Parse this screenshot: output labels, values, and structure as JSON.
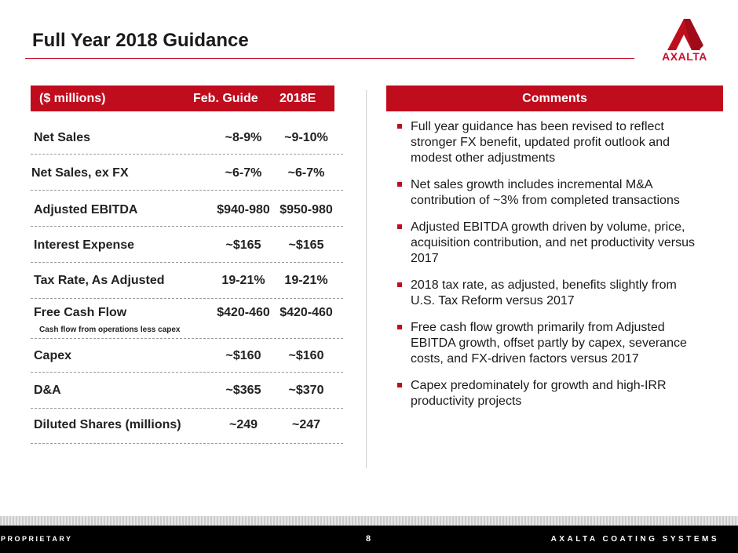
{
  "header": {
    "title": "Full Year 2018 Guidance",
    "logo_text": "AXALTA",
    "brand_color": "#c00d1e"
  },
  "table": {
    "header": {
      "label": "($ millions)",
      "feb_guide": "Feb. Guide",
      "col_2018e": "2018E"
    },
    "rows": [
      {
        "label": "Net Sales",
        "feb_guide": "~8-9%",
        "col_2018e": "~9-10%"
      },
      {
        "label": "Net Sales, ex FX",
        "feb_guide": "~6-7%",
        "col_2018e": "~6-7%"
      },
      {
        "label": "Adjusted EBITDA",
        "feb_guide": "$940-980",
        "col_2018e": "$950-980"
      },
      {
        "label": "Interest Expense",
        "feb_guide": "~$165",
        "col_2018e": "~$165"
      },
      {
        "label": "Tax Rate, As Adjusted",
        "feb_guide": "19-21%",
        "col_2018e": "19-21%"
      },
      {
        "label": "Free Cash Flow",
        "feb_guide": "$420-460",
        "col_2018e": "$420-460"
      },
      {
        "label": "Capex",
        "feb_guide": "~$160",
        "col_2018e": "~$160"
      },
      {
        "label": "D&A",
        "feb_guide": "~$365",
        "col_2018e": "~$370"
      },
      {
        "label": "Diluted Shares (millions)",
        "feb_guide": "~249",
        "col_2018e": "~247"
      }
    ],
    "fcf_note": "Cash flow from operations less capex"
  },
  "comments": {
    "header": "Comments",
    "items": [
      "Full year guidance has been revised to reflect stronger FX benefit, updated profit outlook and modest other adjustments",
      "Net sales growth includes incremental M&A contribution of ~3% from completed transactions",
      "Adjusted EBITDA growth driven by volume, price, acquisition contribution, and net productivity versus 2017",
      "2018 tax rate, as adjusted, benefits slightly from U.S. Tax Reform versus 2017",
      "Free cash flow growth primarily from Adjusted EBITDA growth, offset partly by capex, severance costs, and FX-driven factors versus 2017",
      "Capex predominately for growth and high-IRR productivity projects"
    ]
  },
  "footer": {
    "left": "PROPRIETARY",
    "page": "8",
    "right": "AXALTA COATING SYSTEMS"
  }
}
